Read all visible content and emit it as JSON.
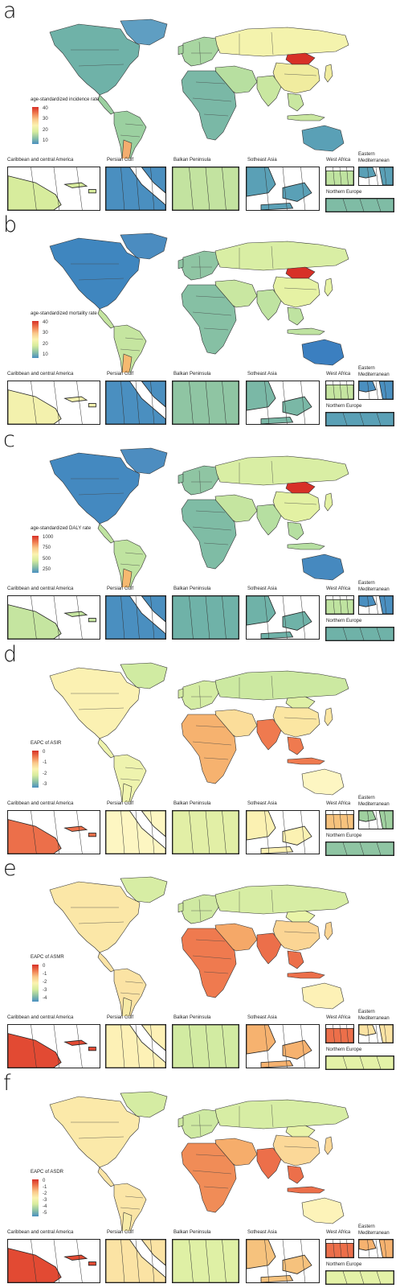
{
  "panels": [
    {
      "letter": "a",
      "legend": {
        "title": "age-standardized incidence rate",
        "ticks": [
          "40",
          "30",
          "20",
          "10"
        ]
      },
      "palette": [
        "#4a8fc0",
        "#8fc3a5",
        "#d7ec9d",
        "#fbf3b0",
        "#f9c88a",
        "#ef7a4f",
        "#d73027"
      ],
      "world_colors": {
        "north_america": "#6fb2a8",
        "greenland": "#5f9ec2",
        "south_america": "#9bd0a0",
        "europe": "#a8d6a1",
        "russia": "#f4f3ad",
        "mongolia": "#d73027",
        "china": "#f0ec9f",
        "middle_east": "#b7dfa0",
        "africa": "#7ab8a6",
        "south_asia": "#c9e7a0",
        "oceania": "#5aa0b6",
        "argentina_chile": "#f3ad6f"
      }
    },
    {
      "letter": "b",
      "legend": {
        "title": "age-standardized mortality rate",
        "ticks": [
          "40",
          "30",
          "20",
          "10"
        ]
      },
      "palette": [
        "#4a8fc0",
        "#8fc3a5",
        "#d7ec9d",
        "#fbf3b0",
        "#f9c88a",
        "#ef7a4f",
        "#d73027"
      ],
      "world_colors": {
        "north_america": "#3f86bf",
        "greenland": "#4b8cc0",
        "south_america": "#c5e5a0",
        "europe": "#8fc5a3",
        "russia": "#d9eea4",
        "mongolia": "#d73027",
        "china": "#e6f2a4",
        "middle_east": "#c9e7a1",
        "africa": "#86c0a4",
        "south_asia": "#bfe3a1",
        "oceania": "#3b7fc0",
        "argentina_chile": "#f6b970"
      }
    },
    {
      "letter": "c",
      "legend": {
        "title": "age-standardized DALY rate",
        "ticks": [
          "1000",
          "750",
          "500",
          "250"
        ]
      },
      "palette": [
        "#4a8fc0",
        "#8fc3a5",
        "#d7ec9d",
        "#fbf3b0",
        "#f9c88a",
        "#ef7a4f",
        "#d73027"
      ],
      "world_colors": {
        "north_america": "#4489c0",
        "greenland": "#4d8dc0",
        "south_america": "#bfe3a0",
        "europe": "#8fc5a3",
        "russia": "#d9eea4",
        "mongolia": "#d73027",
        "china": "#e3f1a3",
        "middle_east": "#c5e5a0",
        "africa": "#7fbca5",
        "south_asia": "#b6dfa1",
        "oceania": "#4689bf",
        "argentina_chile": "#f6b970"
      }
    },
    {
      "letter": "d",
      "legend": {
        "title": "EAPC of ASIR",
        "ticks": [
          "0",
          "-1",
          "-2",
          "-3"
        ]
      },
      "palette": [
        "#4a8fc0",
        "#8fc3a5",
        "#d7ec9d",
        "#fbf3b0",
        "#f9c88a",
        "#ef7a4f",
        "#d73027"
      ],
      "world_colors": {
        "north_america": "#fbf1b2",
        "greenland": "#d0eba2",
        "south_america": "#eef3ae",
        "europe": "#d4eca3",
        "russia": "#cce9a1",
        "mongolia": "#dff0a5",
        "china": "#fbe6a2",
        "middle_east": "#fbdd9a",
        "africa": "#f6b26f",
        "south_asia": "#ef7a4f",
        "oceania": "#fdf6c2",
        "argentina_chile": "#f1f5b0"
      }
    },
    {
      "letter": "e",
      "legend": {
        "title": "EAPC of ASMR",
        "ticks": [
          "0",
          "-1",
          "-2",
          "-3",
          "-4"
        ]
      },
      "palette": [
        "#4a8fc0",
        "#8fc3a5",
        "#d7ec9d",
        "#fbf3b0",
        "#f9c88a",
        "#ef7a4f",
        "#d73027"
      ],
      "world_colors": {
        "north_america": "#fbe7a7",
        "greenland": "#d7eda4",
        "south_america": "#fbe3a4",
        "europe": "#cfe9a2",
        "russia": "#d7eda4",
        "mongolia": "#e9f4a8",
        "china": "#fbd594",
        "middle_east": "#f5a868",
        "africa": "#ef7a4f",
        "south_asia": "#ec6f4a",
        "oceania": "#fdf1b6",
        "argentina_chile": "#f7eaa6"
      }
    },
    {
      "letter": "f",
      "legend": {
        "title": "EAPC of ASDR",
        "ticks": [
          "0",
          "-1",
          "-2",
          "-3",
          "-4",
          "-5"
        ]
      },
      "palette": [
        "#4a8fc0",
        "#8fc3a5",
        "#d7ec9d",
        "#fbf3b0",
        "#f9c88a",
        "#ef7a4f",
        "#d73027"
      ],
      "world_colors": {
        "north_america": "#fbe9a9",
        "greenland": "#d5eca3",
        "south_america": "#fbe5a6",
        "europe": "#cee9a2",
        "russia": "#d7eda4",
        "mongolia": "#e8f3a8",
        "china": "#fbd898",
        "middle_east": "#f6ad6b",
        "africa": "#f08c57",
        "south_asia": "#ec6f4a",
        "oceania": "#fdf3b9",
        "argentina_chile": "#f7eba8"
      }
    }
  ],
  "insets": {
    "caribbean": "Caribbean and central America",
    "persian_gulf": "Persian Gulf",
    "balkan": "Balkan Peninsula",
    "se_asia": "Sotheast Asia",
    "west_africa": "West Africa",
    "east_med": "Eastern Mediterranean",
    "north_europe": "Northern Europe"
  },
  "inset_colors": [
    {
      "caribbean": "#d7ec9d",
      "persian_gulf": "#4a8fc0",
      "balkan": "#c3e3a0",
      "se_asia": "#5aa0b6",
      "west_africa": "#bfe3a0",
      "east_med": "#5aa0b6",
      "north_europe": "#7fbca5"
    },
    {
      "caribbean": "#f3f1ad",
      "persian_gulf": "#4a8fc0",
      "balkan": "#8fc5a3",
      "se_asia": "#7ab8a6",
      "west_africa": "#c5e5a0",
      "east_med": "#4a8fc0",
      "north_europe": "#5aa0b6"
    },
    {
      "caribbean": "#c5e5a0",
      "persian_gulf": "#4a8fc0",
      "balkan": "#6fb2a8",
      "se_asia": "#6fb2a8",
      "west_africa": "#bfe3a0",
      "east_med": "#4a8fc0",
      "north_europe": "#6fb2a8"
    },
    {
      "caribbean": "#ec6f4a",
      "persian_gulf": "#fdf6c2",
      "balkan": "#e2efa6",
      "se_asia": "#fbf1b2",
      "west_africa": "#f6c27d",
      "east_med": "#9fd09f",
      "north_europe": "#8fc5a3"
    },
    {
      "caribbean": "#e24a33",
      "persian_gulf": "#fdf1b6",
      "balkan": "#d2eba2",
      "se_asia": "#f6b26f",
      "west_africa": "#ec6f4a",
      "east_med": "#fbe3a4",
      "north_europe": "#e4f2a7"
    },
    {
      "caribbean": "#e24a33",
      "persian_gulf": "#fbe3a4",
      "balkan": "#dff0a5",
      "se_asia": "#f6c27d",
      "west_africa": "#ec6f4a",
      "east_med": "#f6b26f",
      "north_europe": "#e4f2a7"
    }
  ]
}
